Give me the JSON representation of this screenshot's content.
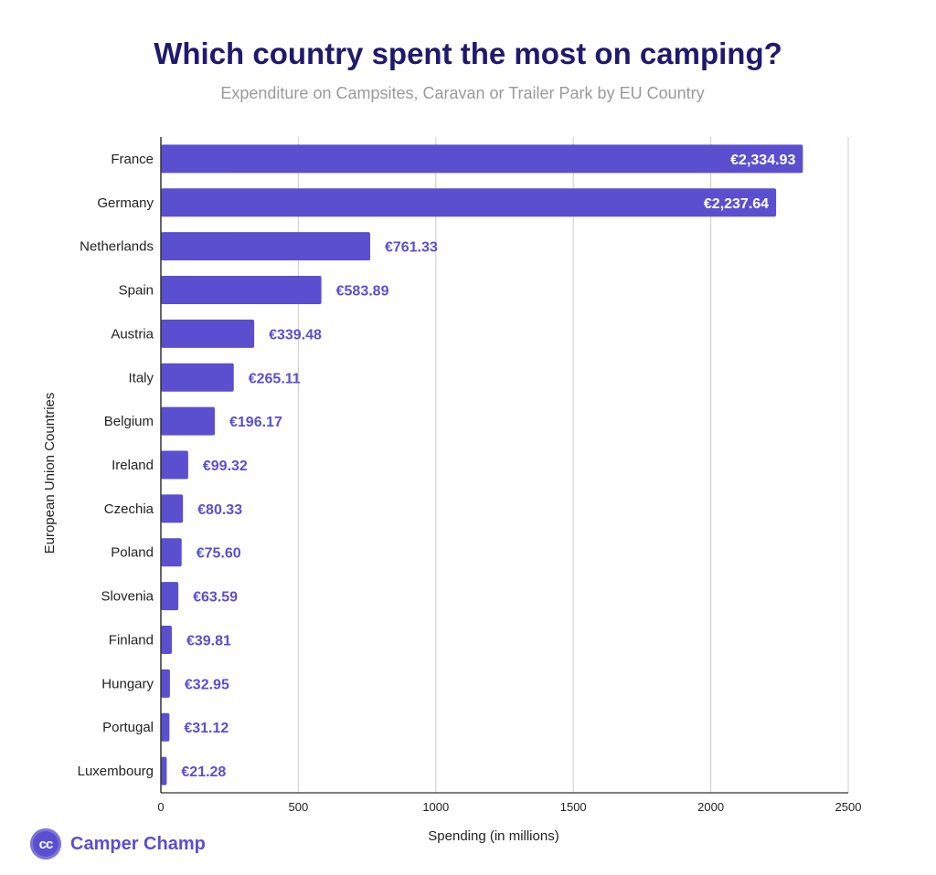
{
  "chart_data": {
    "type": "bar",
    "orientation": "horizontal",
    "title": "Which country spent the most on camping?",
    "subtitle": "Expenditure on Campsites, Caravan or Trailer Park by EU Country",
    "xlabel": "Spending (in millions)",
    "ylabel": "European Union Countries",
    "categories": [
      "France",
      "Germany",
      "Netherlands",
      "Spain",
      "Austria",
      "Italy",
      "Belgium",
      "Ireland",
      "Czechia",
      "Poland",
      "Slovenia",
      "Finland",
      "Hungary",
      "Portugal",
      "Luxembourg"
    ],
    "values": [
      2334.93,
      2237.64,
      761.33,
      583.89,
      339.48,
      265.11,
      196.17,
      99.32,
      80.33,
      75.6,
      63.59,
      39.81,
      32.95,
      31.12,
      21.28
    ],
    "value_labels": [
      "€2,334.93",
      "€2,237.64",
      "€761.33",
      "€583.89",
      "€339.48",
      "€265.11",
      "€196.17",
      "€99.32",
      "€80.33",
      "€75.60",
      "€63.59",
      "€39.81",
      "€32.95",
      "€31.12",
      "€21.28"
    ],
    "xlim": [
      0,
      2500
    ],
    "xticks": [
      0,
      500,
      1000,
      1500,
      2000,
      2500
    ],
    "grid": true,
    "legend": "none",
    "bar_color": "#5a4fcf",
    "label_color": "#5a4fcf",
    "inside_label_color": "#ffffff"
  },
  "brand": {
    "logo_text": "cc",
    "name": "Camper Champ",
    "color": "#5a4fcf"
  }
}
